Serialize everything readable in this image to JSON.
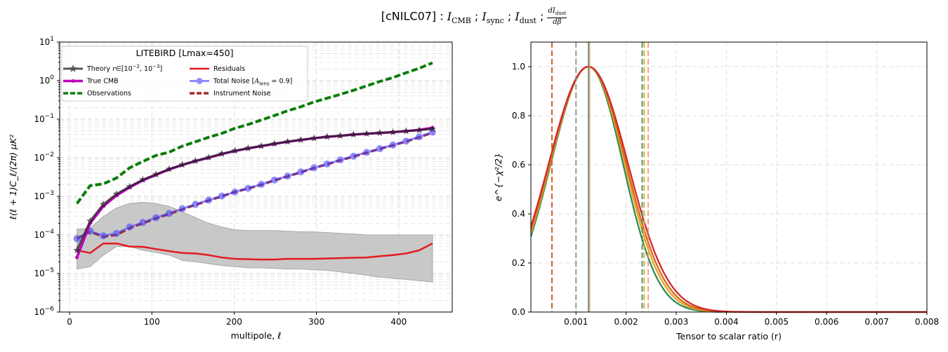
{
  "figure": {
    "title_prefix": "[cNILC07] : ",
    "title_parts": [
      {
        "sym": "I",
        "sub": "CMB"
      },
      {
        "sym": "I",
        "sub": "sync"
      },
      {
        "sym": "I",
        "sub": "dust"
      }
    ],
    "title_sep": " ; ",
    "title_frac_num": "dI",
    "title_frac_num_sub": "dust",
    "title_frac_den": "dβ"
  },
  "chart_data": [
    {
      "type": "line",
      "legend_title": "LITEBIRD [Lmax=450]",
      "xlabel": "multipole, ℓ",
      "ylabel": "ℓ(ℓ + 1)C_ℓ/(2π)  μK²",
      "xlim": [
        -12,
        465
      ],
      "ylim": [
        1e-06,
        10
      ],
      "yscale": "log",
      "grid": true,
      "legend_placement": "top-left",
      "xticks": [
        0,
        100,
        200,
        300,
        400
      ],
      "yticks": [
        {
          "value": 1e-06,
          "base": "10",
          "exp": "−6"
        },
        {
          "value": 1e-05,
          "base": "10",
          "exp": "−5"
        },
        {
          "value": 0.0001,
          "base": "10",
          "exp": "−4"
        },
        {
          "value": 0.001,
          "base": "10",
          "exp": "−3"
        },
        {
          "value": 0.01,
          "base": "10",
          "exp": "−2"
        },
        {
          "value": 0.1,
          "base": "10",
          "exp": "−1"
        },
        {
          "value": 1,
          "base": "10",
          "exp": "0"
        },
        {
          "value": 10,
          "base": "10",
          "exp": "1"
        }
      ],
      "band": {
        "name": "residual spread",
        "color": "#c8c8c8",
        "x": [
          9,
          25,
          41,
          57,
          73,
          89,
          105,
          121,
          137,
          153,
          169,
          185,
          201,
          217,
          233,
          249,
          265,
          281,
          297,
          313,
          329,
          345,
          361,
          377,
          393,
          409,
          425,
          441
        ],
        "upper": [
          0.00014,
          0.00015,
          0.0003,
          0.0005,
          0.00065,
          0.0007,
          0.00065,
          0.00055,
          0.0004,
          0.00028,
          0.0002,
          0.00016,
          0.000135,
          0.00013,
          0.00013,
          0.00013,
          0.000125,
          0.00012,
          0.00012,
          0.000115,
          0.00011,
          0.000105,
          0.0001,
          0.0001,
          0.0001,
          0.0001,
          0.0001,
          0.0001
        ],
        "lower": [
          1.3e-05,
          1.5e-05,
          3e-05,
          5e-05,
          5e-05,
          4e-05,
          3.5e-05,
          3e-05,
          2.2e-05,
          2e-05,
          1.8e-05,
          1.6e-05,
          1.5e-05,
          1.4e-05,
          1.4e-05,
          1.35e-05,
          1.3e-05,
          1.3e-05,
          1.25e-05,
          1.2e-05,
          1.1e-05,
          1e-05,
          9e-06,
          8e-06,
          7.5e-06,
          7e-06,
          6.5e-06,
          6e-06
        ]
      },
      "series": [
        {
          "name": "Observations",
          "color": "#0a7d0a",
          "style": "dashed",
          "width": 4,
          "x": [
            9,
            25,
            41,
            57,
            73,
            89,
            105,
            121,
            137,
            153,
            169,
            185,
            201,
            217,
            233,
            249,
            265,
            281,
            297,
            313,
            329,
            345,
            361,
            377,
            393,
            409,
            425,
            441
          ],
          "y": [
            0.00065,
            0.0019,
            0.0021,
            0.003,
            0.0055,
            0.008,
            0.0115,
            0.014,
            0.02,
            0.026,
            0.034,
            0.043,
            0.058,
            0.073,
            0.095,
            0.125,
            0.165,
            0.21,
            0.28,
            0.35,
            0.44,
            0.56,
            0.73,
            0.95,
            1.2,
            1.6,
            2.1,
            2.9
          ]
        },
        {
          "name": "Residuals",
          "color": "#e41a1c",
          "style": "solid",
          "width": 2.5,
          "x": [
            9,
            25,
            41,
            57,
            73,
            89,
            105,
            121,
            137,
            153,
            169,
            185,
            201,
            217,
            233,
            249,
            265,
            281,
            297,
            313,
            329,
            345,
            361,
            377,
            393,
            409,
            425,
            441
          ],
          "y": [
            4e-05,
            3.4e-05,
            6e-05,
            6e-05,
            5e-05,
            4.9e-05,
            4.3e-05,
            3.8e-05,
            3.4e-05,
            3.3e-05,
            3e-05,
            2.6e-05,
            2.4e-05,
            2.35e-05,
            2.3e-05,
            2.3e-05,
            2.4e-05,
            2.4e-05,
            2.4e-05,
            2.45e-05,
            2.5e-05,
            2.55e-05,
            2.6e-05,
            2.8e-05,
            3e-05,
            3.3e-05,
            4e-05,
            6e-05
          ]
        },
        {
          "name": "Instrument Noise",
          "color": "#a52a2a",
          "style": "dashed",
          "width": 3.5,
          "x": [
            9,
            25,
            41,
            57,
            73,
            89,
            105,
            121,
            137,
            153,
            169,
            185,
            201,
            217,
            233,
            249,
            265,
            281,
            297,
            313,
            329,
            345,
            361,
            377,
            393,
            409,
            425,
            441
          ],
          "y": [
            8e-05,
            0.00012,
            9e-05,
            0.0001,
            0.00015,
            0.0002,
            0.00027,
            0.00035,
            0.00046,
            0.0006,
            0.00078,
            0.001,
            0.0013,
            0.0016,
            0.002,
            0.0026,
            0.0033,
            0.0042,
            0.0054,
            0.0068,
            0.0086,
            0.0108,
            0.0135,
            0.017,
            0.021,
            0.0265,
            0.034,
            0.045
          ]
        },
        {
          "name": "Total Noise [A_lens = 0.9]",
          "color": "#4444ff",
          "style": "solid",
          "width": 3,
          "marker": "circle",
          "alpha": 0.6,
          "x": [
            9,
            25,
            41,
            57,
            73,
            89,
            105,
            121,
            137,
            153,
            169,
            185,
            201,
            217,
            233,
            249,
            265,
            281,
            297,
            313,
            329,
            345,
            361,
            377,
            393,
            409,
            425,
            441
          ],
          "y": [
            8e-05,
            0.000125,
            9.5e-05,
            0.00011,
            0.00016,
            0.00021,
            0.00028,
            0.00036,
            0.00048,
            0.00062,
            0.0008,
            0.00102,
            0.0013,
            0.00162,
            0.00205,
            0.00265,
            0.00335,
            0.0043,
            0.0055,
            0.0069,
            0.0088,
            0.011,
            0.0138,
            0.0172,
            0.0215,
            0.027,
            0.035,
            0.046
          ]
        },
        {
          "name": "True CMB",
          "color": "#c000c0",
          "style": "solid",
          "width": 3.5,
          "marker": "dot",
          "x": [
            9,
            25,
            41,
            57,
            73,
            89,
            105,
            121,
            137,
            153,
            169,
            185,
            201,
            217,
            233,
            249,
            265,
            281,
            297,
            313,
            329,
            345,
            361,
            377,
            393,
            409,
            425,
            441
          ],
          "y": [
            2.6e-05,
            0.0002,
            0.00055,
            0.00105,
            0.0017,
            0.0026,
            0.0036,
            0.005,
            0.0065,
            0.0082,
            0.01,
            0.0125,
            0.015,
            0.0175,
            0.02,
            0.023,
            0.026,
            0.029,
            0.032,
            0.035,
            0.037,
            0.04,
            0.042,
            0.044,
            0.046,
            0.049,
            0.053,
            0.06
          ]
        },
        {
          "name": "Theory r∈[10⁻², 10⁻³]",
          "color": "#222222",
          "style": "solid",
          "width": 3,
          "marker": "star",
          "alpha": 0.75,
          "x": [
            9,
            25,
            41,
            57,
            73,
            89,
            105,
            121,
            137,
            153,
            169,
            185,
            201,
            217,
            233,
            249,
            265,
            281,
            297,
            313,
            329,
            345,
            361,
            377,
            393,
            409,
            425,
            441
          ],
          "y": [
            4e-05,
            0.00023,
            0.00062,
            0.00115,
            0.0018,
            0.0027,
            0.0037,
            0.0051,
            0.0066,
            0.0083,
            0.0102,
            0.0127,
            0.0152,
            0.0177,
            0.0202,
            0.0232,
            0.0262,
            0.0292,
            0.0322,
            0.0352,
            0.0372,
            0.0402,
            0.0422,
            0.0442,
            0.0462,
            0.0492,
            0.052,
            0.056
          ]
        }
      ],
      "legend": {
        "col1": [
          {
            "label_pre": "Theory ",
            "label_math": "r",
            "label_post": "∈[10",
            "sup1": "−2",
            "mid": ", 10",
            "sup2": "−3",
            "end": "]",
            "key": "theory"
          },
          {
            "label": "True CMB",
            "key": "truecmb"
          },
          {
            "label": "Observations",
            "key": "obs"
          }
        ],
        "col2": [
          {
            "label": "Residuals",
            "key": "resid"
          },
          {
            "label_pre": "Total Noise [",
            "label_math": "A",
            "sub": "lens",
            "label_post": " = 0.9]",
            "key": "totnoise"
          },
          {
            "label": "Instrument Noise",
            "key": "instr"
          }
        ]
      }
    },
    {
      "type": "line",
      "xlabel": "Tensor to scalar ratio (r)",
      "ylabel": "e^{−χ²/2}",
      "xlim": [
        0.0001,
        0.008
      ],
      "ylim": [
        0,
        1.1
      ],
      "grid": true,
      "xticks": [
        0.001,
        0.002,
        0.003,
        0.004,
        0.005,
        0.006,
        0.007,
        0.008
      ],
      "xtick_labels": [
        "0.001",
        "0.002",
        "0.003",
        "0.004",
        "0.005",
        "0.006",
        "0.007",
        "0.008"
      ],
      "yticks": [
        0.0,
        0.2,
        0.4,
        0.6,
        0.8,
        1.0
      ],
      "ytick_labels": [
        "0.0",
        "0.2",
        "0.4",
        "0.6",
        "0.8",
        "1.0"
      ],
      "series": [
        {
          "color": "#2e8b57",
          "peak": 0.00125,
          "sigma_left": 0.00106,
          "sigma_right": 0.00097
        },
        {
          "color": "#e8a020",
          "peak": 0.00125,
          "sigma_left": 0.00108,
          "sigma_right": 0.00102
        },
        {
          "color": "#d2691e",
          "peak": 0.00125,
          "sigma_left": 0.0011,
          "sigma_right": 0.00106
        },
        {
          "color": "#d62728",
          "peak": 0.00125,
          "sigma_left": 0.00112,
          "sigma_right": 0.00111
        }
      ],
      "vlines": [
        {
          "x": 0.00052,
          "color": "#a52a2a",
          "style": "dashed"
        },
        {
          "x": 0.00052,
          "color": "#d2691e",
          "style": "dashed"
        },
        {
          "x": 0.001,
          "color": "#888888",
          "style": "dashed"
        },
        {
          "x": 0.00125,
          "color": "#2e8b57",
          "style": "solid"
        },
        {
          "x": 0.00127,
          "color": "#e9967a",
          "style": "solid"
        },
        {
          "x": 0.00232,
          "color": "#2e8b57",
          "style": "dashed"
        },
        {
          "x": 0.00236,
          "color": "#e8a020",
          "style": "dashed"
        },
        {
          "x": 0.00244,
          "color": "#e9967a",
          "style": "dashed"
        }
      ]
    }
  ]
}
